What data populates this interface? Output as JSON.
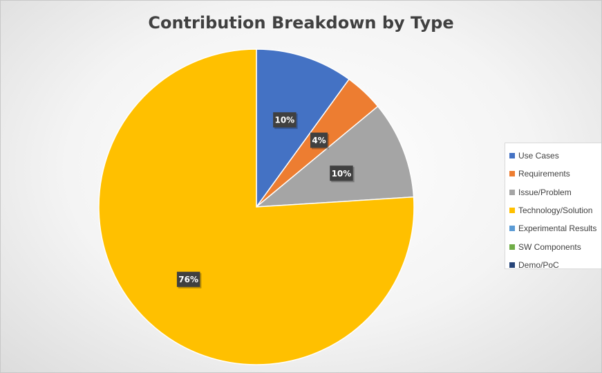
{
  "chart_data": {
    "type": "pie",
    "title": "Contribution Breakdown by Type",
    "categories": [
      "Use Cases",
      "Requirements",
      "Issue/Problem",
      "Technology/Solution",
      "Experimental Results",
      "SW Components",
      "Demo/PoC"
    ],
    "values": [
      10,
      4,
      10,
      76,
      0,
      0,
      0
    ],
    "data_labels": [
      "10%",
      "4%",
      "10%",
      "76%",
      "",
      "",
      ""
    ],
    "colors": [
      "#4472c4",
      "#ed7d31",
      "#a5a5a5",
      "#ffc000",
      "#5b9bd5",
      "#70ad47",
      "#264478"
    ],
    "legend_position": "right",
    "start_angle_deg": 0,
    "direction": "clockwise"
  }
}
